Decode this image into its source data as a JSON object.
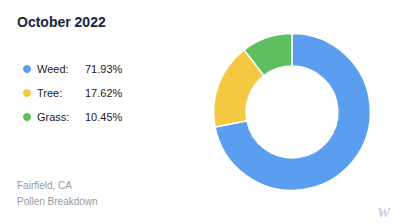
{
  "chart_data": {
    "type": "pie",
    "title": "October 2022",
    "subtitle": "Fairfield, CA\nPollen Breakdown",
    "categories": [
      "Weed:",
      "Tree:",
      "Grass:"
    ],
    "values": [
      71.93,
      17.62,
      10.45
    ],
    "value_labels": [
      "71.93%",
      "17.62%",
      "10.45%"
    ],
    "colors": [
      "#5B9EF0",
      "#F5C842",
      "#5DBF60"
    ],
    "legend": "left",
    "annotations": [
      "w"
    ]
  }
}
